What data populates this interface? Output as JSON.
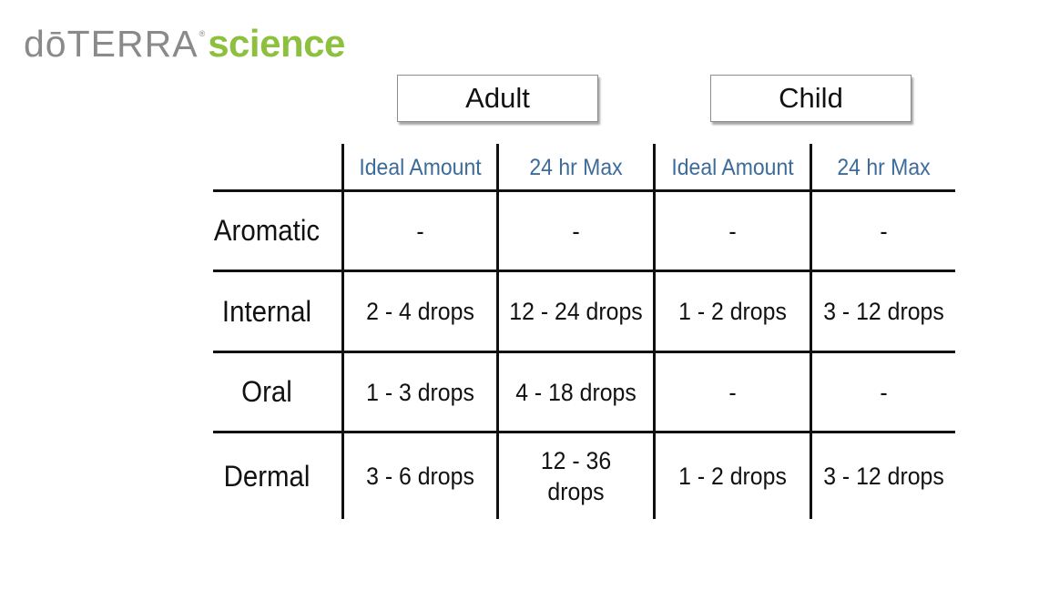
{
  "logo": {
    "brand": "dōTERRA",
    "registered": "®",
    "science": "science"
  },
  "groups": {
    "adult": "Adult",
    "child": "Child"
  },
  "columns": [
    "Ideal Amount",
    "24 hr Max",
    "Ideal Amount",
    "24 hr Max"
  ],
  "rows": [
    {
      "label": "Aromatic",
      "values": [
        "-",
        "-",
        "-",
        "-"
      ]
    },
    {
      "label": "Internal",
      "values": [
        "2 - 4 drops",
        "12 - 24 drops",
        "1 - 2 drops",
        "3 - 12 drops"
      ]
    },
    {
      "label": "Oral",
      "values": [
        "1 - 3 drops",
        "4 - 18 drops",
        "-",
        "-"
      ]
    },
    {
      "label": "Dermal",
      "values": [
        "3 - 6 drops",
        "12 - 36\ndrops",
        "1 - 2 drops",
        "3 - 12 drops"
      ]
    }
  ],
  "colors": {
    "logo_gray": "#8a8a8a",
    "logo_green": "#8dc03f",
    "column_header_blue": "#3d6b9a"
  }
}
